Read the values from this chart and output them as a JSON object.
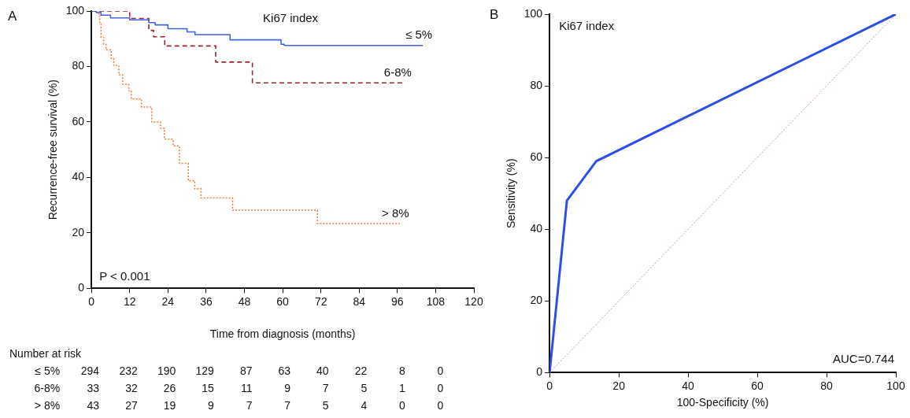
{
  "chart_data": [
    {
      "type": "step",
      "title": "Ki67 index",
      "xlabel": "Time from diagnosis (months)",
      "ylabel": "Recurrence-free survival (%)",
      "xlim": [
        0,
        120
      ],
      "xticks": [
        0,
        12,
        24,
        36,
        48,
        60,
        72,
        84,
        96,
        108,
        120
      ],
      "ylim": [
        0,
        100
      ],
      "yticks": [
        0,
        20,
        40,
        60,
        80,
        100
      ],
      "grid": false,
      "legend": false,
      "marker": "none",
      "annotations": [
        "A",
        "P < 0.001",
        "Number at risk",
        "≤ 5% 294 232 190 129 87 63 40 22 8 0",
        "6-8% 33 32 26 15 11 9 7 5 1 0",
        "> 8% 43 27 19 9 7 7 5 4 0 0"
      ],
      "series": [
        {
          "name": "≤ 5%",
          "color": "#3f62e0",
          "line_style": "solid",
          "x": [
            0,
            1.5,
            3,
            6,
            12,
            18,
            20,
            24,
            30,
            32.5,
            43.5,
            59.5,
            60.5,
            104
          ],
          "values": [
            100,
            99.5,
            98.5,
            97.5,
            96.8,
            95.8,
            95,
            93.6,
            92.5,
            91.5,
            89.6,
            88,
            87.6,
            87.6
          ]
        },
        {
          "name": "6-8%",
          "color": "#9b2535",
          "line_style": "dashed",
          "x": [
            0,
            12,
            18,
            19.5,
            23,
            39,
            50.5,
            97.5
          ],
          "values": [
            100,
            97.3,
            93,
            90.7,
            87.4,
            81.6,
            74.1,
            74.1
          ]
        },
        {
          "name": "> 8%",
          "color": "#f07d3c",
          "line_style": "dotted",
          "x": [
            0,
            1.8,
            2.6,
            3,
            3.8,
            4.6,
            6.2,
            7,
            8.6,
            9.8,
            11.7,
            12.5,
            15.7,
            18.9,
            21.7,
            22.9,
            25.6,
            27.6,
            30.4,
            32.4,
            34.4,
            44.3,
            70.9,
            96.7
          ],
          "values": [
            100,
            99,
            95.4,
            90.5,
            88,
            86,
            82.8,
            80.4,
            77,
            73.6,
            71.2,
            68.3,
            65.4,
            60,
            57.7,
            53.8,
            51.4,
            45.1,
            38.8,
            35.9,
            32.6,
            28.2,
            23.4,
            23.4
          ]
        }
      ]
    },
    {
      "type": "line",
      "title": "Ki67 index",
      "xlabel": "100-Specificity (%)",
      "ylabel": "Sensitivity (%)",
      "xlim": [
        0,
        100
      ],
      "xticks": [
        0,
        20,
        40,
        60,
        80,
        100
      ],
      "ylim": [
        0,
        100
      ],
      "yticks": [
        0,
        20,
        40,
        60,
        80,
        100
      ],
      "grid": false,
      "legend": false,
      "marker": "none",
      "annotations": [
        "B",
        "AUC=0.744"
      ],
      "series": [
        {
          "color": "#2e4fe6",
          "line_style": "solid",
          "x": [
            0,
            5,
            13.5,
            100
          ],
          "values": [
            0,
            48,
            59,
            100
          ]
        },
        {
          "color": "#d8909a",
          "line_style": "dotted",
          "x": [
            0,
            100
          ],
          "values": [
            0,
            100
          ]
        }
      ]
    }
  ]
}
